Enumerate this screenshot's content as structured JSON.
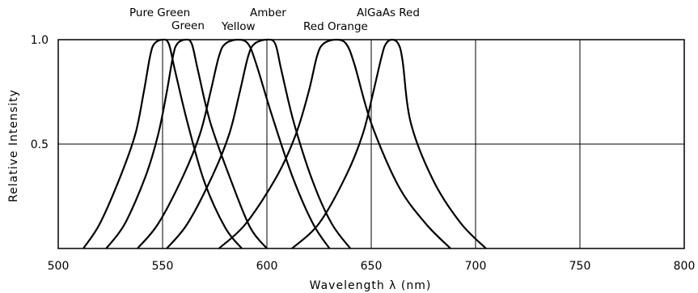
{
  "chart_data": {
    "type": "line",
    "xlabel": "Wavelength λ   (nm)",
    "ylabel": "Relative Intensity",
    "xlim": [
      500,
      800
    ],
    "ylim": [
      0,
      1.0
    ],
    "x_ticks": [
      500,
      550,
      600,
      650,
      700,
      750,
      800
    ],
    "y_ticks": [
      0.5,
      1.0
    ],
    "y_tick_labels": [
      "0.5",
      "1.0"
    ],
    "grid": true,
    "series": [
      {
        "name": "Pure Green",
        "peak": 550,
        "points": [
          [
            512,
            0
          ],
          [
            520,
            0.12
          ],
          [
            530,
            0.35
          ],
          [
            537,
            0.55
          ],
          [
            541,
            0.75
          ],
          [
            544,
            0.92
          ],
          [
            546,
            0.98
          ],
          [
            550,
            1.0
          ],
          [
            553,
            0.98
          ],
          [
            556,
            0.85
          ],
          [
            562,
            0.6
          ],
          [
            570,
            0.32
          ],
          [
            580,
            0.1
          ],
          [
            588,
            0
          ]
        ]
      },
      {
        "name": "Green",
        "peak": 561,
        "points": [
          [
            523,
            0
          ],
          [
            532,
            0.12
          ],
          [
            542,
            0.35
          ],
          [
            548,
            0.55
          ],
          [
            552,
            0.75
          ],
          [
            555,
            0.92
          ],
          [
            557,
            0.98
          ],
          [
            561,
            1.0
          ],
          [
            564,
            0.98
          ],
          [
            567,
            0.85
          ],
          [
            573,
            0.6
          ],
          [
            583,
            0.32
          ],
          [
            592,
            0.1
          ],
          [
            600,
            0
          ]
        ]
      },
      {
        "name": "Yellow",
        "peak": 586,
        "points": [
          [
            538,
            0
          ],
          [
            548,
            0.12
          ],
          [
            560,
            0.35
          ],
          [
            568,
            0.55
          ],
          [
            573,
            0.75
          ],
          [
            577,
            0.92
          ],
          [
            580,
            0.98
          ],
          [
            586,
            1.0
          ],
          [
            591,
            0.98
          ],
          [
            595,
            0.88
          ],
          [
            602,
            0.65
          ],
          [
            612,
            0.35
          ],
          [
            622,
            0.12
          ],
          [
            630,
            0
          ]
        ]
      },
      {
        "name": "Amber",
        "peak": 600,
        "points": [
          [
            552,
            0
          ],
          [
            562,
            0.12
          ],
          [
            574,
            0.35
          ],
          [
            582,
            0.55
          ],
          [
            587,
            0.75
          ],
          [
            591,
            0.92
          ],
          [
            594,
            0.98
          ],
          [
            600,
            1.0
          ],
          [
            604,
            0.98
          ],
          [
            607,
            0.85
          ],
          [
            613,
            0.6
          ],
          [
            622,
            0.32
          ],
          [
            631,
            0.12
          ],
          [
            640,
            0
          ]
        ]
      },
      {
        "name": "Red Orange",
        "peak": 633,
        "points": [
          [
            577,
            0
          ],
          [
            590,
            0.12
          ],
          [
            605,
            0.35
          ],
          [
            614,
            0.55
          ],
          [
            620,
            0.75
          ],
          [
            624,
            0.92
          ],
          [
            627,
            0.98
          ],
          [
            633,
            1.0
          ],
          [
            638,
            0.98
          ],
          [
            642,
            0.88
          ],
          [
            650,
            0.6
          ],
          [
            663,
            0.3
          ],
          [
            676,
            0.12
          ],
          [
            688,
            0
          ]
        ]
      },
      {
        "name": "AlGaAs Red",
        "peak": 660,
        "points": [
          [
            612,
            0
          ],
          [
            625,
            0.12
          ],
          [
            638,
            0.35
          ],
          [
            646,
            0.55
          ],
          [
            651,
            0.75
          ],
          [
            655,
            0.92
          ],
          [
            657,
            0.98
          ],
          [
            660,
            1.0
          ],
          [
            663,
            0.98
          ],
          [
            665,
            0.9
          ],
          [
            669,
            0.6
          ],
          [
            680,
            0.32
          ],
          [
            693,
            0.12
          ],
          [
            705,
            0
          ]
        ]
      }
    ]
  }
}
